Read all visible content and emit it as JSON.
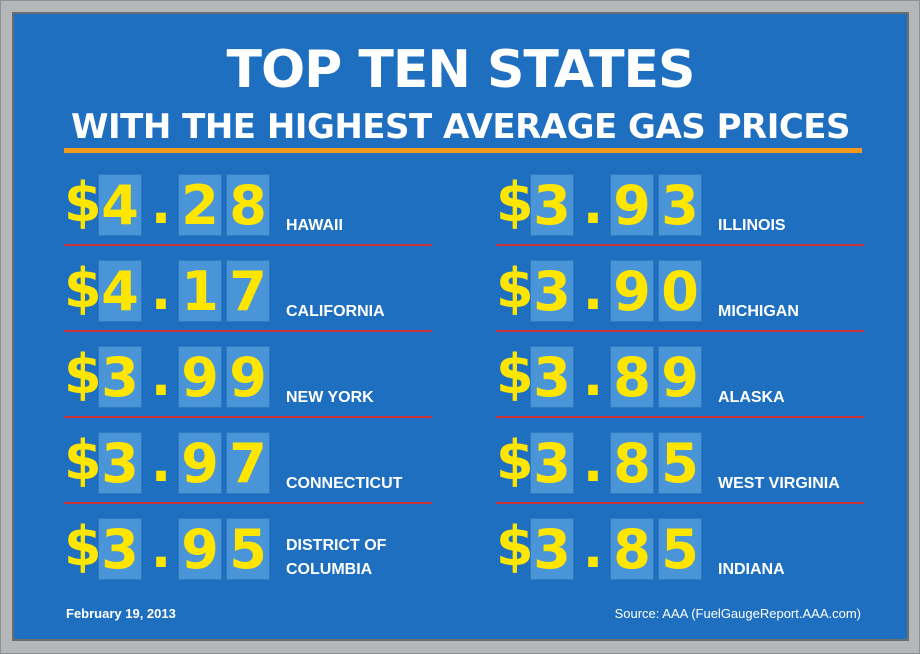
{
  "title": "TOP TEN STATES",
  "subtitle": "WITH THE HIGHEST AVERAGE GAS PRICES",
  "currency_symbol": "$",
  "date": "February 19, 2013",
  "source": "Source: AAA (FuelGaugeReport.AAA.com)",
  "colors": {
    "board": "#1e6fc0",
    "digit_tile": "#4a95d8",
    "price_text": "#ffe600",
    "accent_rule": "#f39a1e",
    "divider": "#c8323a"
  },
  "chart_data": {
    "type": "table",
    "title": "TOP TEN STATES",
    "subtitle": "WITH THE HIGHEST AVERAGE GAS PRICES",
    "columns": [
      "price",
      "state"
    ],
    "rows": [
      {
        "state": "HAWAII",
        "price": 4.28,
        "price_text": "4.28"
      },
      {
        "state": "CALIFORNIA",
        "price": 4.17,
        "price_text": "4.17"
      },
      {
        "state": "NEW YORK",
        "price": 3.99,
        "price_text": "3.99"
      },
      {
        "state": "CONNECTICUT",
        "price": 3.97,
        "price_text": "3.97"
      },
      {
        "state": "DISTRICT OF COLUMBIA",
        "state_lines": [
          "DISTRICT OF",
          "COLUMBIA"
        ],
        "price": 3.95,
        "price_text": "3.95"
      },
      {
        "state": "ILLINOIS",
        "price": 3.93,
        "price_text": "3.93"
      },
      {
        "state": "MICHIGAN",
        "price": 3.9,
        "price_text": "3.90"
      },
      {
        "state": "ALASKA",
        "price": 3.89,
        "price_text": "3.89"
      },
      {
        "state": "WEST VIRGINIA",
        "price": 3.85,
        "price_text": "3.85"
      },
      {
        "state": "INDIANA",
        "price": 3.85,
        "price_text": "3.85"
      }
    ]
  }
}
